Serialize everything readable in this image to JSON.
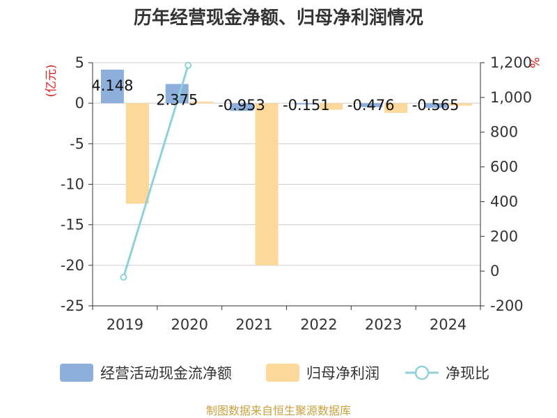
{
  "chart_data": {
    "type": "bar",
    "title": "历年经营现金净额、归母净利润情况",
    "categories": [
      "2019",
      "2020",
      "2021",
      "2022",
      "2023",
      "2024"
    ],
    "left_axis": {
      "unit": "(亿元)",
      "ylim": [
        -25,
        5
      ],
      "ticks": [
        "5",
        "0",
        "-5",
        "-10",
        "-15",
        "-20",
        "-25"
      ],
      "tick_values": [
        5,
        0,
        -5,
        -10,
        -15,
        -20,
        -25
      ]
    },
    "right_axis": {
      "unit": "%",
      "ylim": [
        -200,
        1200
      ],
      "ticks": [
        "1,200",
        "1,000",
        "800",
        "600",
        "400",
        "200",
        "0",
        "-200"
      ],
      "tick_values": [
        1200,
        1000,
        800,
        600,
        400,
        200,
        0,
        -200
      ]
    },
    "series": [
      {
        "name": "经营活动现金流净额",
        "type": "bar",
        "axis": "left",
        "color": "#8eaedb",
        "values": [
          4.148,
          2.375,
          -0.953,
          -0.151,
          -0.476,
          -0.565
        ],
        "labels": [
          "4.148",
          "2.375",
          "-0.953",
          "-0.151",
          "-0.476",
          "-0.565"
        ]
      },
      {
        "name": "归母净利润",
        "type": "bar",
        "axis": "left",
        "color": "#fdd89b",
        "values": [
          -12.4,
          0.2,
          -20.0,
          -0.8,
          -1.2,
          -0.3
        ]
      },
      {
        "name": "净现比",
        "type": "line",
        "axis": "right",
        "color": "#8dd1d9",
        "values": [
          -35,
          1185,
          null,
          null,
          null,
          null
        ]
      }
    ],
    "grid": true,
    "legend_position": "bottom",
    "source": "制图数据来自恒生聚源数据库",
    "colors": {
      "title": "#333333",
      "axis_unit": "#e02020",
      "source": "#c8a040",
      "grid": "#cccccc"
    }
  }
}
